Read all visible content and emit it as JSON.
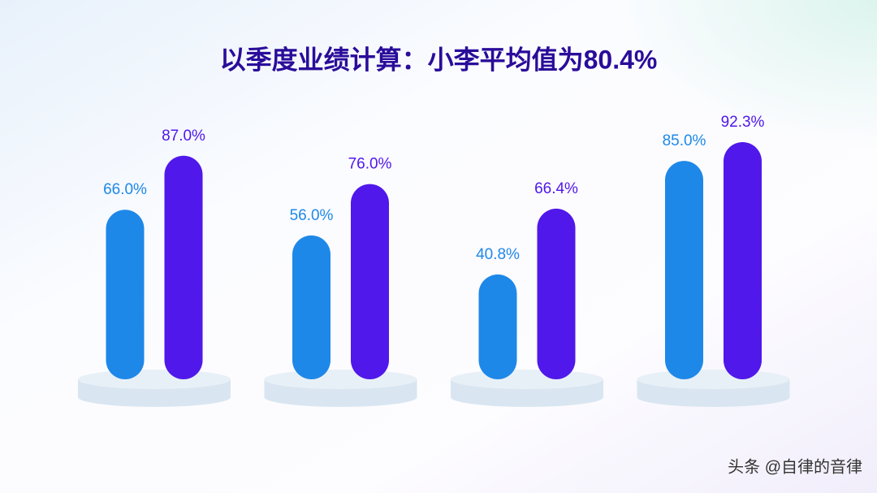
{
  "chart_data": {
    "type": "bar",
    "title": "以季度业绩计算：小李平均值为80.4%",
    "categories": [
      null,
      null,
      null,
      null
    ],
    "series": [
      {
        "color": "#1e88e8",
        "values": [
          66.0,
          56.0,
          40.8,
          85.0
        ],
        "value_labels": [
          "66.0%",
          "56.0%",
          "40.8%",
          "85.0%"
        ]
      },
      {
        "color": "#5018ea",
        "values": [
          87.0,
          76.0,
          66.4,
          92.3
        ],
        "value_labels": [
          "87.0%",
          "76.0%",
          "66.4%",
          "92.3%"
        ]
      }
    ]
  },
  "watermark": "头条 @自律的音律"
}
